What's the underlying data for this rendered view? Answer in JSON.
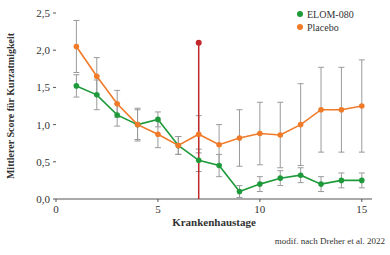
{
  "chart_data": {
    "type": "line",
    "x_label": "Krankenhaustage",
    "y_label": "Mittlerer Score für Kurzatmigkeit",
    "source": "modif. nach Dreher et al. 2022",
    "x": [
      1,
      2,
      3,
      4,
      5,
      6,
      7,
      8,
      9,
      10,
      11,
      12,
      13,
      14,
      15
    ],
    "series": [
      {
        "name": "ELOM-080",
        "color": "#1f9a3a",
        "marker": "circle",
        "values": [
          1.52,
          1.4,
          1.13,
          1.0,
          1.07,
          0.72,
          0.52,
          0.45,
          0.1,
          0.2,
          0.28,
          0.32,
          0.2,
          0.25,
          0.25
        ],
        "errors": [
          0.15,
          0.2,
          0.15,
          0.2,
          0.1,
          0.12,
          0.15,
          0.15,
          0.08,
          0.1,
          0.1,
          0.1,
          0.1,
          0.1,
          0.1
        ]
      },
      {
        "name": "Placebo",
        "color": "#f07a28",
        "marker": "circle",
        "values": [
          2.05,
          1.65,
          1.28,
          1.0,
          0.87,
          0.72,
          0.87,
          0.73,
          0.82,
          0.88,
          0.86,
          1.0,
          1.2,
          1.2,
          1.25
        ],
        "errors": [
          0.35,
          0.25,
          0.18,
          0.22,
          0.18,
          0.12,
          0.25,
          0.27,
          0.38,
          0.42,
          0.44,
          0.55,
          0.57,
          0.57,
          0.62
        ]
      }
    ],
    "reference": {
      "x": 7,
      "y_low": 0,
      "y_high": 2.1,
      "color": "#c0282a"
    },
    "xlim": [
      0,
      15.5
    ],
    "xticks": [
      0,
      5,
      10,
      15
    ],
    "ylim": [
      0,
      2.5
    ],
    "yticks": [
      {
        "value": 0,
        "label": "0,0"
      },
      {
        "value": 0.5,
        "label": "0,5"
      },
      {
        "value": 1,
        "label": "1,0"
      },
      {
        "value": 1.5,
        "label": "1,5"
      },
      {
        "value": 2,
        "label": "2,0"
      },
      {
        "value": 2.5,
        "label": "2,5"
      }
    ],
    "grid": false,
    "legend": "upper right"
  }
}
